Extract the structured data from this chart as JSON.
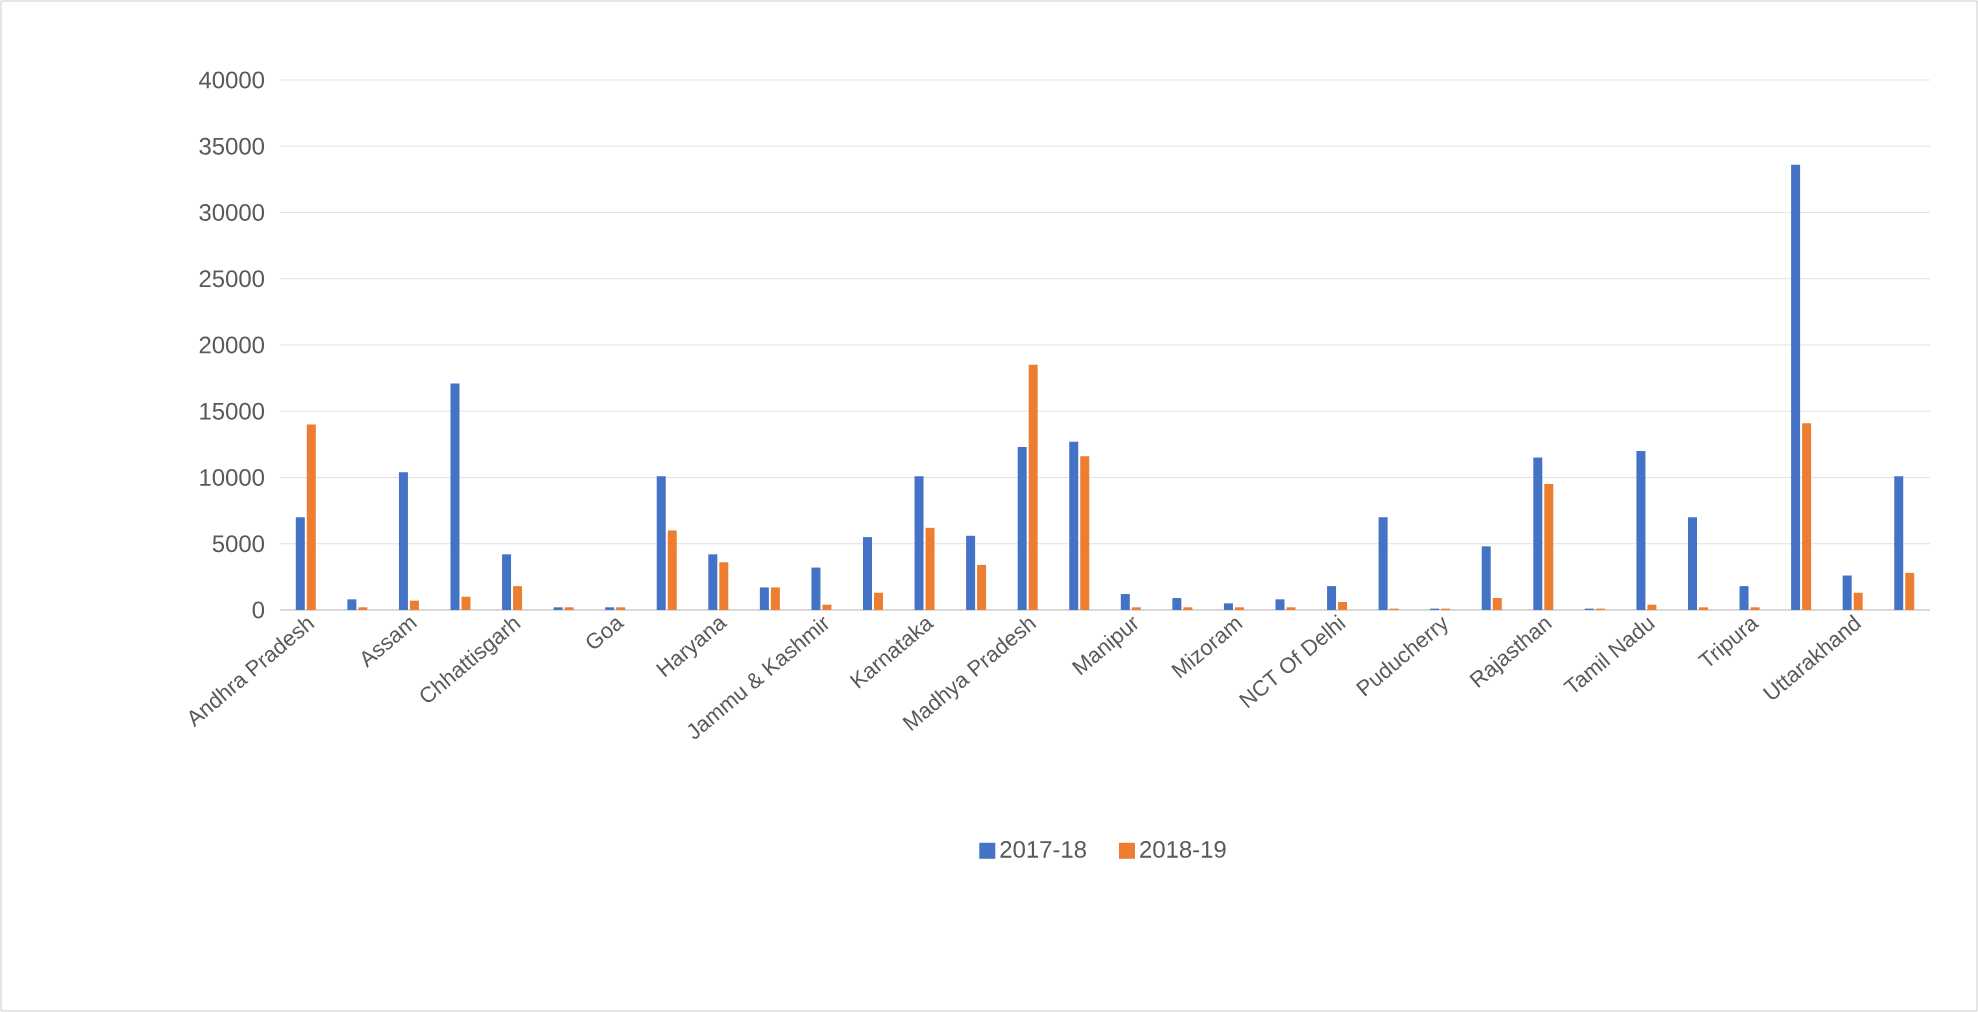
{
  "chart_data": {
    "type": "bar",
    "categories": [
      "Andhra Pradesh",
      null,
      "Assam",
      null,
      "Chhattisgarh",
      null,
      "Goa",
      null,
      "Haryana",
      null,
      "Jammu & Kashmir",
      null,
      "Karnataka",
      null,
      "Madhya Pradesh",
      null,
      "Manipur",
      null,
      "Mizoram",
      null,
      "NCT Of Delhi",
      null,
      "Puducherry",
      null,
      "Rajasthan",
      null,
      "Tamil Nadu",
      null,
      "Tripura",
      null,
      "Uttarakhand",
      null
    ],
    "series": [
      {
        "name": "2017-18",
        "color": "#4472c4",
        "values": [
          7000,
          800,
          10400,
          17100,
          4200,
          200,
          200,
          10100,
          4200,
          1700,
          3200,
          5500,
          10100,
          5600,
          12300,
          12700,
          1200,
          900,
          500,
          800,
          1800,
          7000,
          100,
          4800,
          11500,
          100,
          12000,
          7000,
          1800,
          33600,
          2600,
          10100
        ]
      },
      {
        "name": "2018-19",
        "color": "#ed7d31",
        "values": [
          14000,
          200,
          700,
          1000,
          1800,
          200,
          200,
          6000,
          3600,
          1700,
          400,
          1300,
          6200,
          3400,
          18500,
          11600,
          200,
          200,
          200,
          200,
          600,
          100,
          100,
          900,
          9500,
          100,
          400,
          200,
          200,
          14100,
          1300,
          2800
        ]
      }
    ],
    "ylim": [
      0,
      40000
    ],
    "yticks": [
      0,
      5000,
      10000,
      15000,
      20000,
      25000,
      30000,
      35000,
      40000
    ],
    "grid": "y",
    "legend": "bottom"
  }
}
